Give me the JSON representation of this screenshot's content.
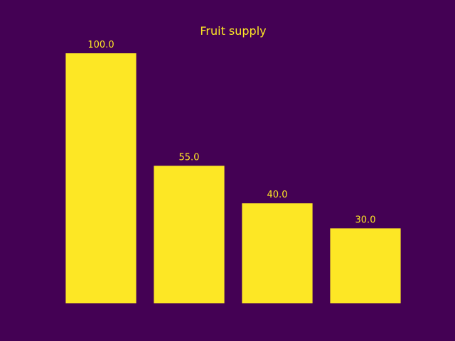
{
  "colors": {
    "background": "#440154",
    "bar": "#fde725",
    "text": "#fde725"
  },
  "chart_data": {
    "type": "bar",
    "title": "Fruit supply",
    "categories": [
      "",
      "",
      "",
      ""
    ],
    "values": [
      100.0,
      55.0,
      40.0,
      30.0
    ],
    "value_labels": [
      "100.0",
      "55.0",
      "40.0",
      "30.0"
    ],
    "xlabel": "",
    "ylabel": "",
    "ylim": [
      0,
      100
    ],
    "grid": false,
    "axes_visible": false
  }
}
